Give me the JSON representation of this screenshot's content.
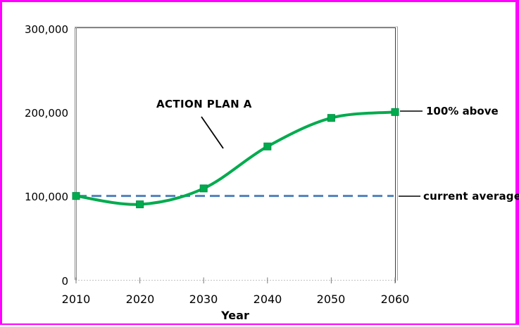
{
  "frame": {
    "border_color": "#ff00ff",
    "background": "#ffffff"
  },
  "chart_data": {
    "type": "line",
    "title": "",
    "xlabel": "Year",
    "ylabel": "",
    "x": [
      2010,
      2020,
      2030,
      2040,
      2050,
      2060
    ],
    "x_tick_labels": [
      "2010",
      "2020",
      "2030",
      "2040",
      "2050",
      "2060"
    ],
    "y_tick_labels": [
      "300,000",
      "200,000",
      "100,000",
      "0"
    ],
    "xlim": [
      2010,
      2060
    ],
    "ylim": [
      0,
      300000
    ],
    "grid": false,
    "legend": "none",
    "series": [
      {
        "name": "ACTION PLAN A",
        "values": [
          100000,
          90000,
          109000,
          159000,
          193000,
          200000
        ],
        "color": "#00ab4e",
        "marker": "square",
        "smooth": true
      }
    ],
    "reference_line": {
      "label": "current average",
      "value": 100000,
      "color": "#4f81bd",
      "style": "dashed"
    },
    "annotations": [
      {
        "id": "action-plan-a",
        "text": "ACTION PLAN A"
      },
      {
        "id": "hundred-above",
        "text": "100% above"
      },
      {
        "id": "current-average",
        "text": "current average"
      }
    ]
  }
}
